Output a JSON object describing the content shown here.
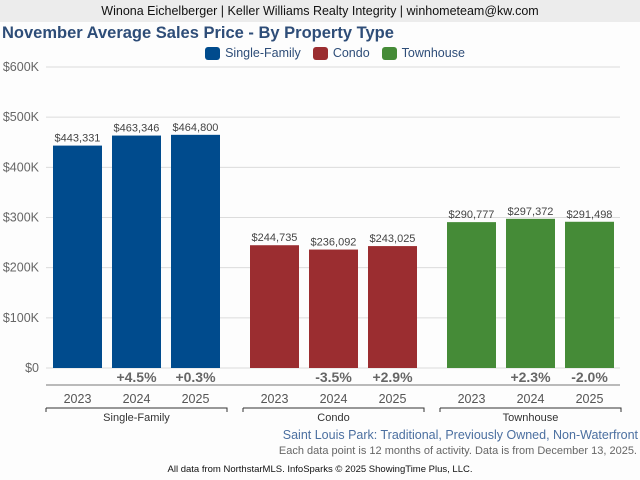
{
  "header": {
    "agent_line": "Winona Eichelberger | Keller Williams Realty Integrity | winhometeam@kw.com"
  },
  "chart_data": {
    "type": "bar",
    "title": "November Average Sales Price - By Property Type",
    "xlabel": "",
    "ylabel": "",
    "ylim": [
      0,
      600000
    ],
    "yticks": [
      0,
      100000,
      200000,
      300000,
      400000,
      500000,
      600000
    ],
    "ytick_labels": [
      "$0",
      "$100K",
      "$200K",
      "$300K",
      "$400K",
      "$500K",
      "$600K"
    ],
    "grid": true,
    "legend_position": "top-center",
    "categories": [
      "2023",
      "2024",
      "2025"
    ],
    "series": [
      {
        "name": "Single-Family",
        "color": "#004b8d",
        "values": [
          443331,
          463346,
          464800
        ],
        "value_labels": [
          "$443,331",
          "$463,346",
          "$464,800"
        ],
        "changes": [
          "",
          "+4.5%",
          "+0.3%"
        ]
      },
      {
        "name": "Condo",
        "color": "#9b2d30",
        "values": [
          244735,
          236092,
          243025
        ],
        "value_labels": [
          "$244,735",
          "$236,092",
          "$243,025"
        ],
        "changes": [
          "",
          "-3.5%",
          "+2.9%"
        ]
      },
      {
        "name": "Townhouse",
        "color": "#458b37",
        "values": [
          290777,
          297372,
          291498
        ],
        "value_labels": [
          "$290,777",
          "$297,372",
          "$291,498"
        ],
        "changes": [
          "",
          "+2.3%",
          "-2.0%"
        ]
      }
    ]
  },
  "notes": {
    "area": "Saint Louis Park: Traditional, Previously Owned, Non-Waterfront",
    "data_note": "Each data point is 12 months of activity. Data is from December 13, 2025."
  },
  "footer": {
    "text": "All data from NorthstarMLS. InfoSparks © 2025 ShowingTime Plus, LLC."
  }
}
